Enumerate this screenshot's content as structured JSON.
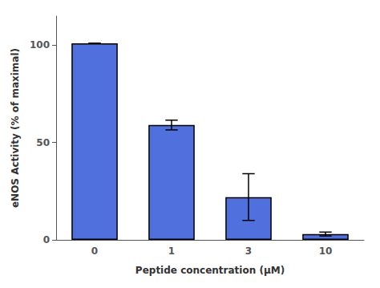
{
  "chart_data": {
    "type": "bar",
    "xlabel": "Peptide concentration (μM)",
    "ylabel": "eNOS Activity (% of maximal)",
    "categories": [
      "0",
      "1",
      "3",
      "10"
    ],
    "values": [
      101,
      59,
      22,
      3
    ],
    "errors": [
      0,
      2.5,
      12,
      1.0
    ],
    "ylim": [
      0,
      115
    ],
    "yticks": [
      0,
      50,
      100
    ],
    "grid": false
  }
}
